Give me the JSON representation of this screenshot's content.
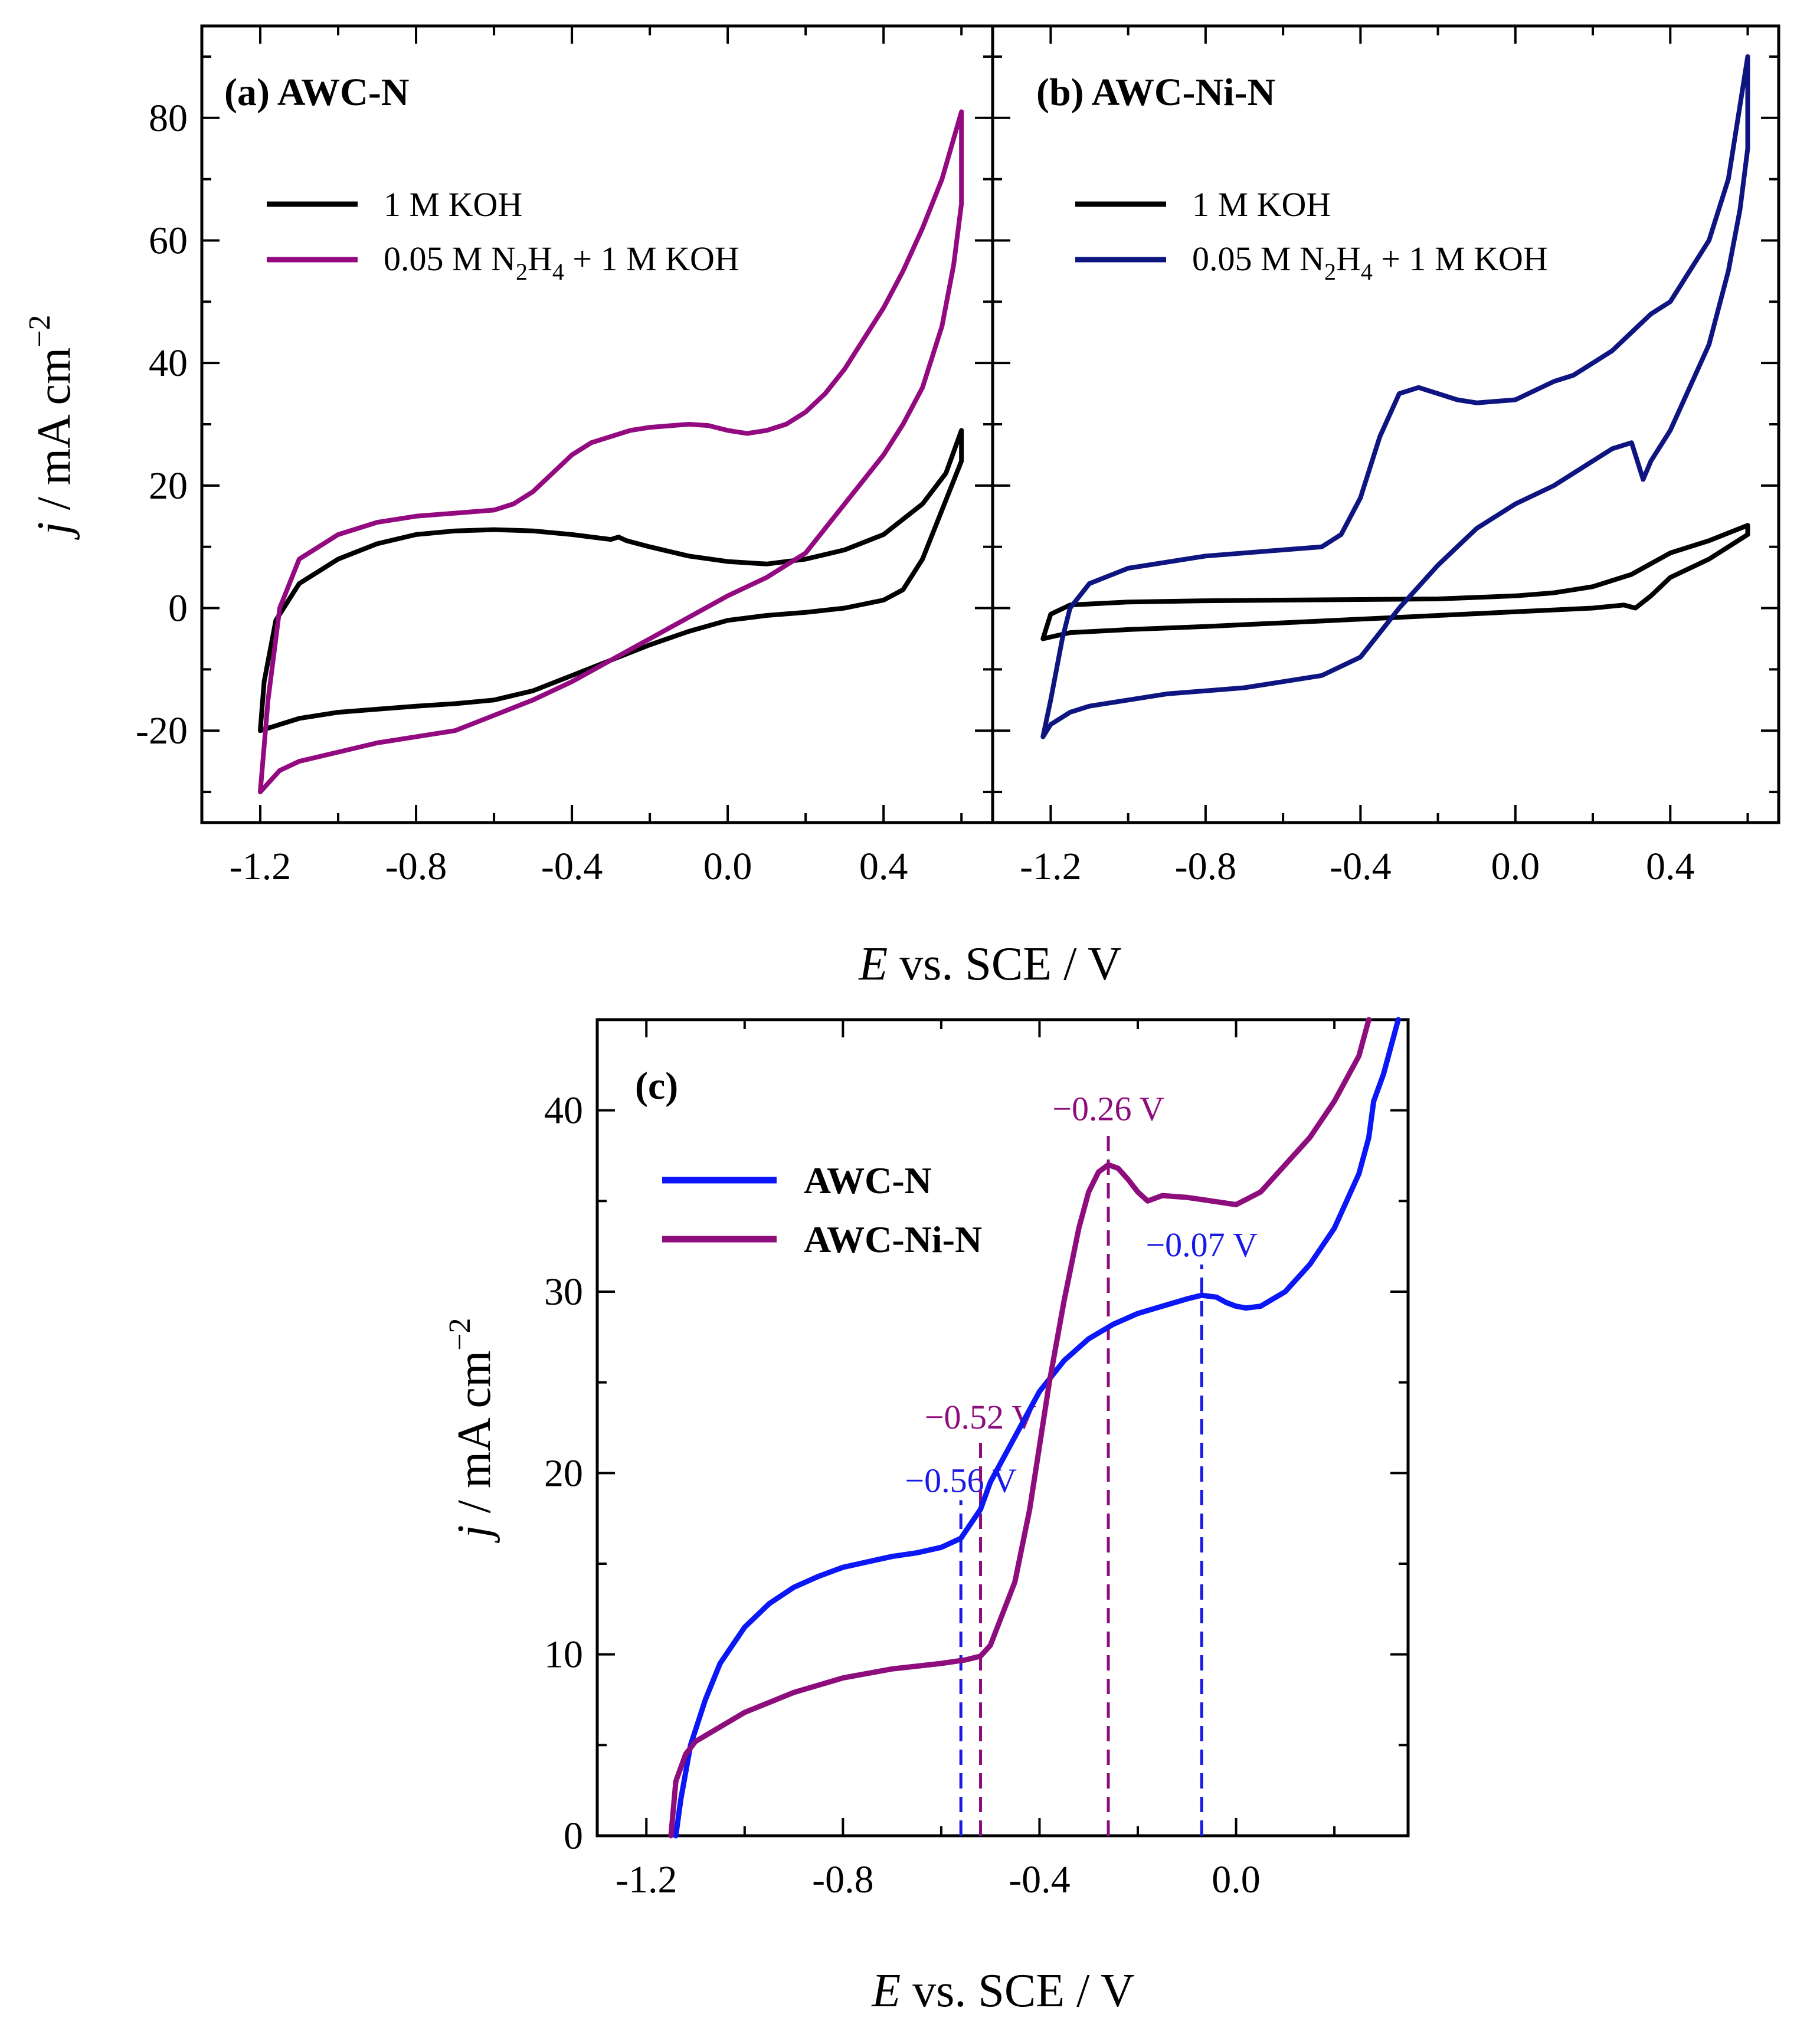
{
  "colors": {
    "black": "#000000",
    "purple": "#930A80",
    "navy": "#0E1480",
    "blue": "#0B17F6",
    "plum": "#8E0D7C",
    "ann_blue": "#1A1AE6",
    "ann_purple": "#8E0D7C"
  },
  "chart_data": [
    {
      "id": "a",
      "type": "line",
      "panel_label": "(a) AWC-N",
      "xlabel_italic": "E",
      "xlabel_rest": " vs. SCE / V",
      "ylabel_italic": "j",
      "ylabel_rest": " / mA cm",
      "ylabel_sup": "−2",
      "xlim": [
        -1.35,
        0.68
      ],
      "ylim": [
        -35,
        95
      ],
      "xticks": [
        "-1.2",
        "-0.8",
        "-0.4",
        "0.0",
        "0.4"
      ],
      "xtick_values": [
        -1.2,
        -0.8,
        -0.4,
        0.0,
        0.4
      ],
      "yticks": [
        "-20",
        "0",
        "20",
        "40",
        "60",
        "80"
      ],
      "ytick_values": [
        -20,
        0,
        20,
        40,
        60,
        80
      ],
      "legend": [
        {
          "label": "1 M KOH",
          "color": "#000000"
        },
        {
          "label_parts": [
            "0.05 M N",
            "2",
            "H",
            "4",
            " + 1 M KOH"
          ],
          "color": "#930A80"
        }
      ],
      "series": [
        {
          "name": "1 M KOH",
          "color": "#000000",
          "x": [
            -1.2,
            -1.19,
            -1.16,
            -1.1,
            -1.0,
            -0.9,
            -0.8,
            -0.7,
            -0.6,
            -0.5,
            -0.4,
            -0.3,
            -0.28,
            -0.26,
            -0.2,
            -0.1,
            0.0,
            0.1,
            0.2,
            0.3,
            0.4,
            0.5,
            0.56,
            0.6,
            0.6,
            0.55,
            0.5,
            0.45,
            0.4,
            0.3,
            0.2,
            0.1,
            0.0,
            -0.1,
            -0.2,
            -0.3,
            -0.4,
            -0.5,
            -0.6,
            -0.7,
            -0.8,
            -0.9,
            -1.0,
            -1.1,
            -1.15,
            -1.2
          ],
          "y": [
            -20,
            -12,
            -2,
            4,
            8,
            10.5,
            12,
            12.6,
            12.8,
            12.6,
            12,
            11.2,
            11.6,
            11,
            10,
            8.5,
            7.6,
            7.2,
            8,
            9.5,
            12,
            17,
            22,
            29,
            24,
            16,
            8,
            3,
            1.3,
            0,
            -0.7,
            -1.2,
            -2,
            -3.8,
            -6,
            -8.5,
            -11,
            -13.5,
            -15,
            -15.6,
            -16,
            -16.5,
            -17,
            -18,
            -19,
            -20
          ]
        },
        {
          "name": "0.05 M N2H4 + 1 M KOH",
          "color": "#930A80",
          "x": [
            -1.2,
            -1.18,
            -1.15,
            -1.1,
            -1.0,
            -0.9,
            -0.8,
            -0.7,
            -0.6,
            -0.55,
            -0.5,
            -0.45,
            -0.4,
            -0.35,
            -0.3,
            -0.25,
            -0.2,
            -0.1,
            -0.05,
            0.0,
            0.05,
            0.1,
            0.15,
            0.2,
            0.25,
            0.3,
            0.35,
            0.4,
            0.45,
            0.5,
            0.55,
            0.6,
            0.6,
            0.58,
            0.55,
            0.5,
            0.45,
            0.4,
            0.35,
            0.3,
            0.25,
            0.2,
            0.1,
            0.0,
            -0.1,
            -0.2,
            -0.3,
            -0.4,
            -0.5,
            -0.6,
            -0.7,
            -0.8,
            -0.9,
            -1.0,
            -1.1,
            -1.15,
            -1.2
          ],
          "y": [
            -30,
            -15,
            0,
            8,
            12,
            14,
            15,
            15.5,
            16,
            17,
            19,
            22,
            25,
            27,
            28,
            29,
            29.5,
            30,
            29.8,
            29,
            28.5,
            29,
            30,
            32,
            35,
            39,
            44,
            49,
            55,
            62,
            70,
            81,
            66,
            56,
            46,
            36,
            30,
            25,
            21,
            17,
            13,
            9,
            5,
            2,
            -1.5,
            -5,
            -8.5,
            -12,
            -15,
            -17.5,
            -20,
            -21,
            -22,
            -23.5,
            -25,
            -26.5,
            -30
          ]
        }
      ]
    },
    {
      "id": "b",
      "type": "line",
      "panel_label": "(b) AWC-Ni-N",
      "xlim": [
        -1.35,
        0.68
      ],
      "ylim": [
        -35,
        95
      ],
      "xticks": [
        "-1.2",
        "-0.8",
        "-0.4",
        "0.0",
        "0.4"
      ],
      "xtick_values": [
        -1.2,
        -0.8,
        -0.4,
        0.0,
        0.4
      ],
      "legend": [
        {
          "label": "1 M KOH",
          "color": "#000000"
        },
        {
          "label_parts": [
            "0.05 M N",
            "2",
            "H",
            "4",
            " + 1 M KOH"
          ],
          "color": "#0E1480"
        }
      ],
      "series": [
        {
          "name": "1 M KOH",
          "color": "#000000",
          "x": [
            -1.22,
            -1.2,
            -1.15,
            -1.0,
            -0.8,
            -0.6,
            -0.4,
            -0.2,
            0.0,
            0.1,
            0.2,
            0.3,
            0.4,
            0.5,
            0.6,
            0.6,
            0.5,
            0.4,
            0.35,
            0.31,
            0.28,
            0.2,
            0.0,
            -0.2,
            -0.4,
            -0.6,
            -0.8,
            -1.0,
            -1.15,
            -1.22
          ],
          "y": [
            -5,
            -1,
            0.5,
            1,
            1.2,
            1.3,
            1.4,
            1.5,
            2,
            2.5,
            3.5,
            5.5,
            9,
            11,
            13.5,
            12,
            8,
            5,
            2,
            0,
            0.5,
            0,
            -0.6,
            -1.2,
            -1.8,
            -2.4,
            -3,
            -3.5,
            -4,
            -5
          ]
        },
        {
          "name": "0.05 M N2H4 + 1 M KOH",
          "color": "#0E1480",
          "x": [
            -1.22,
            -1.2,
            -1.17,
            -1.15,
            -1.1,
            -1.0,
            -0.8,
            -0.6,
            -0.5,
            -0.45,
            -0.4,
            -0.35,
            -0.3,
            -0.25,
            -0.2,
            -0.15,
            -0.1,
            0.0,
            0.1,
            0.15,
            0.2,
            0.25,
            0.3,
            0.35,
            0.4,
            0.45,
            0.5,
            0.55,
            0.6,
            0.6,
            0.58,
            0.55,
            0.5,
            0.45,
            0.4,
            0.35,
            0.33,
            0.3,
            0.25,
            0.2,
            0.1,
            0.0,
            -0.1,
            -0.2,
            -0.3,
            -0.35,
            -0.4,
            -0.5,
            -0.6,
            -0.7,
            -0.8,
            -0.9,
            -1.0,
            -1.1,
            -1.15,
            -1.2,
            -1.22
          ],
          "y": [
            -21,
            -15,
            -5,
            0,
            4,
            6.5,
            8.5,
            9.5,
            10,
            12,
            18,
            28,
            35,
            36,
            35,
            34,
            33.5,
            34,
            37,
            38,
            40,
            42,
            45,
            48,
            50,
            55,
            60,
            70,
            90,
            75,
            65,
            55,
            43,
            36,
            29,
            24,
            21,
            27,
            26,
            24,
            20,
            17,
            13,
            7,
            0,
            -4,
            -8,
            -11,
            -12,
            -13,
            -13.5,
            -14,
            -15,
            -16,
            -17,
            -19,
            -21
          ]
        }
      ]
    },
    {
      "id": "c",
      "type": "line",
      "panel_label": "(c)",
      "xlabel_italic": "E",
      "xlabel_rest": " vs. SCE / V",
      "ylabel_italic": "j",
      "ylabel_rest": " / mA cm",
      "ylabel_sup": "−2",
      "xlim": [
        -1.3,
        0.35
      ],
      "ylim": [
        0,
        45
      ],
      "xticks": [
        "-1.2",
        "-0.8",
        "-0.4",
        "0.0"
      ],
      "xtick_values": [
        -1.2,
        -0.8,
        -0.4,
        0.0
      ],
      "yticks": [
        "0",
        "10",
        "20",
        "30",
        "40"
      ],
      "ytick_values": [
        0,
        10,
        20,
        30,
        40
      ],
      "legend": [
        {
          "label": "AWC-N",
          "color": "#0B17F6"
        },
        {
          "label": "AWC-Ni-N",
          "color": "#8E0D7C"
        }
      ],
      "series": [
        {
          "name": "AWC-N",
          "color": "#0B17F6",
          "x": [
            -1.14,
            -1.13,
            -1.11,
            -1.08,
            -1.05,
            -1.0,
            -0.95,
            -0.9,
            -0.85,
            -0.8,
            -0.75,
            -0.7,
            -0.65,
            -0.6,
            -0.56,
            -0.52,
            -0.5,
            -0.45,
            -0.4,
            -0.35,
            -0.3,
            -0.25,
            -0.2,
            -0.15,
            -0.1,
            -0.07,
            -0.04,
            -0.02,
            0.0,
            0.02,
            0.05,
            0.1,
            0.15,
            0.2,
            0.25,
            0.27,
            0.28,
            0.3,
            0.33
          ],
          "y": [
            0,
            2,
            5,
            7.5,
            9.5,
            11.5,
            12.8,
            13.7,
            14.3,
            14.8,
            15.1,
            15.4,
            15.6,
            15.9,
            16.4,
            18,
            19.5,
            22,
            24.5,
            26.2,
            27.4,
            28.2,
            28.8,
            29.2,
            29.6,
            29.8,
            29.7,
            29.4,
            29.2,
            29.1,
            29.2,
            30,
            31.5,
            33.5,
            36.5,
            38.5,
            40.5,
            42,
            45
          ]
        },
        {
          "name": "AWC-Ni-N",
          "color": "#8E0D7C",
          "x": [
            -1.15,
            -1.14,
            -1.12,
            -1.1,
            -1.05,
            -1.0,
            -0.9,
            -0.8,
            -0.7,
            -0.6,
            -0.55,
            -0.52,
            -0.5,
            -0.45,
            -0.42,
            -0.4,
            -0.38,
            -0.35,
            -0.32,
            -0.3,
            -0.28,
            -0.26,
            -0.24,
            -0.22,
            -0.2,
            -0.18,
            -0.15,
            -0.1,
            -0.05,
            0.0,
            0.05,
            0.1,
            0.15,
            0.2,
            0.22,
            0.25,
            0.27
          ],
          "y": [
            0,
            3,
            4.5,
            5.2,
            6,
            6.8,
            7.9,
            8.7,
            9.2,
            9.5,
            9.7,
            9.9,
            10.5,
            14,
            18,
            21.5,
            25,
            29.5,
            33.5,
            35.5,
            36.6,
            37,
            36.8,
            36.2,
            35.5,
            35,
            35.3,
            35.2,
            35,
            34.8,
            35.5,
            37,
            38.5,
            40.5,
            41.5,
            43,
            45
          ]
        }
      ],
      "annotations": [
        {
          "text": "−0.56 V",
          "x": -0.56,
          "y_top": 18.5,
          "color": "#1A1AE6"
        },
        {
          "text": "−0.52 V",
          "x": -0.52,
          "y_top": 22,
          "color": "#8E0D7C"
        },
        {
          "text": "−0.26 V",
          "x": -0.26,
          "y_top": 39,
          "color": "#8E0D7C"
        },
        {
          "text": "−0.07 V",
          "x": -0.07,
          "y_top": 31.5,
          "color": "#1A1AE6"
        }
      ]
    }
  ]
}
